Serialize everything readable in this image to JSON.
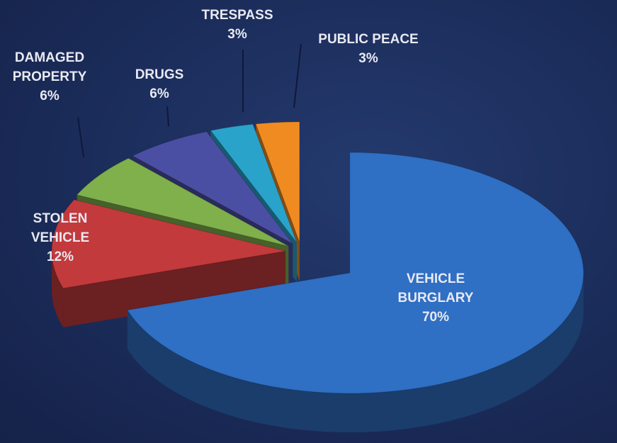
{
  "chart_data": {
    "type": "pie",
    "categories": [
      "VEHICLE BURGLARY",
      "STOLEN VEHICLE",
      "DAMAGED PROPERTY",
      "DRUGS",
      "TRESPASS",
      "PUBLIC PEACE"
    ],
    "values": [
      70,
      12,
      6,
      6,
      3,
      3
    ],
    "value_labels": [
      "70%",
      "12%",
      "6%",
      "6%",
      "3%",
      "3%"
    ],
    "colors": [
      "#2f6fc4",
      "#c23a3c",
      "#7fb04c",
      "#4b4fa3",
      "#2aa3cb",
      "#f08b22"
    ],
    "three_d": true,
    "exploded": true
  }
}
